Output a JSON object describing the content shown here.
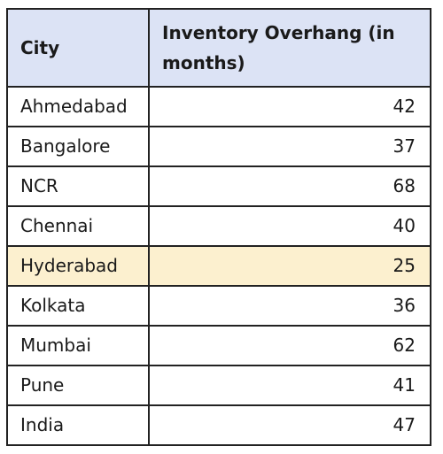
{
  "table": {
    "headers": [
      "City",
      "Inventory Overhang (in months)"
    ],
    "highlight_color": "#fcf0cf",
    "header_color": "#dce3f5",
    "rows": [
      {
        "city": "Ahmedabad",
        "value": "42",
        "highlighted": false
      },
      {
        "city": "Bangalore",
        "value": "37",
        "highlighted": false
      },
      {
        "city": "NCR",
        "value": "68",
        "highlighted": false
      },
      {
        "city": "Chennai",
        "value": "40",
        "highlighted": false
      },
      {
        "city": "Hyderabad",
        "value": "25",
        "highlighted": true
      },
      {
        "city": "Kolkata",
        "value": "36",
        "highlighted": false
      },
      {
        "city": "Mumbai",
        "value": "62",
        "highlighted": false
      },
      {
        "city": "Pune",
        "value": "41",
        "highlighted": false
      },
      {
        "city": "India",
        "value": "47",
        "highlighted": false
      }
    ]
  }
}
